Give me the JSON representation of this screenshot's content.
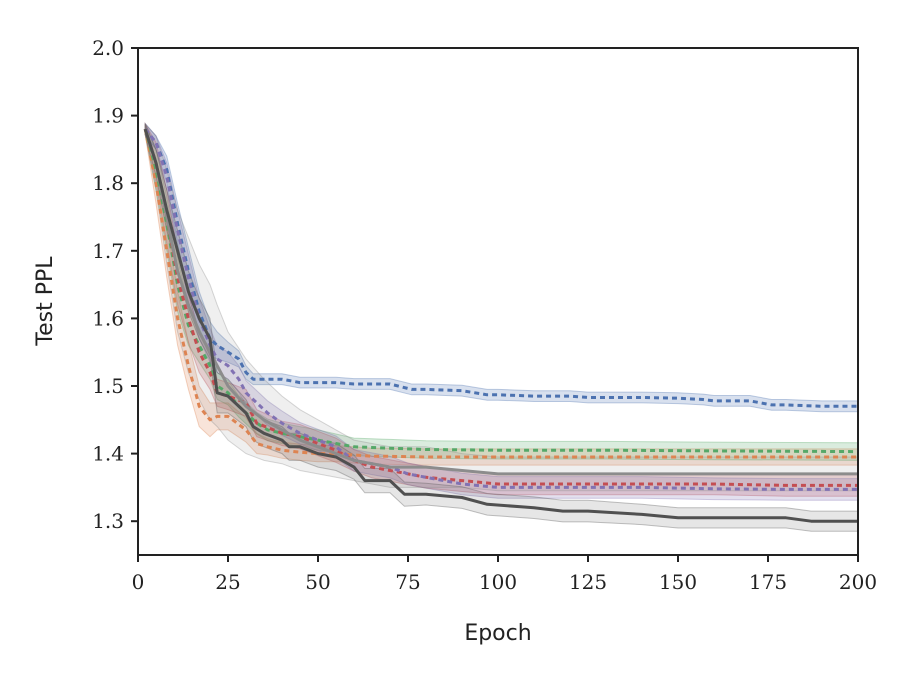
{
  "chart_data": {
    "type": "line",
    "title": "",
    "xlabel": "Epoch",
    "ylabel": "Test PPL",
    "xlim": [
      0,
      200
    ],
    "ylim": [
      1.25,
      2.0
    ],
    "xticks": [
      0,
      25,
      50,
      75,
      100,
      125,
      150,
      175,
      200
    ],
    "yticks": [
      1.3,
      1.4,
      1.5,
      1.6,
      1.7,
      1.8,
      1.9,
      2.0
    ],
    "xtick_labels": [
      "0",
      "25",
      "50",
      "75",
      "100",
      "125",
      "150",
      "175",
      "200"
    ],
    "ytick_labels": [
      "1.3",
      "1.4",
      "1.5",
      "1.6",
      "1.7",
      "1.8",
      "1.9",
      "2.0"
    ],
    "grid": false,
    "legend": "none",
    "series": [
      {
        "color": "#4c72b0",
        "style": "dashed",
        "x": [
          2,
          5,
          8,
          11,
          14,
          17,
          20,
          22,
          25,
          28,
          30,
          32,
          35,
          40,
          45,
          50,
          55,
          60,
          70,
          76,
          80,
          90,
          97,
          100,
          110,
          120,
          125,
          140,
          150,
          157,
          160,
          170,
          176,
          180,
          190,
          200
        ],
        "y": [
          1.88,
          1.86,
          1.82,
          1.74,
          1.67,
          1.61,
          1.57,
          1.56,
          1.55,
          1.54,
          1.52,
          1.51,
          1.51,
          1.51,
          1.505,
          1.505,
          1.505,
          1.503,
          1.503,
          1.495,
          1.495,
          1.493,
          1.487,
          1.487,
          1.485,
          1.485,
          1.483,
          1.483,
          1.482,
          1.48,
          1.478,
          1.478,
          1.472,
          1.472,
          1.47,
          1.47
        ],
        "band": [
          0.008,
          0.01,
          0.02,
          0.03,
          0.035,
          0.03,
          0.025,
          0.02,
          0.015,
          0.012,
          0.01,
          0.008,
          0.008,
          0.008,
          0.008,
          0.008,
          0.008,
          0.008,
          0.008,
          0.008,
          0.008,
          0.008,
          0.008,
          0.008,
          0.008,
          0.008,
          0.008,
          0.008,
          0.008,
          0.008,
          0.008,
          0.008,
          0.008,
          0.008,
          0.008,
          0.008
        ]
      },
      {
        "color": "#dd8452",
        "style": "dashed",
        "x": [
          2,
          5,
          8,
          11,
          14,
          17,
          20,
          22,
          25,
          30,
          33,
          36,
          40,
          45,
          50,
          55,
          60,
          65,
          70,
          80,
          90,
          100,
          120,
          140,
          160,
          180,
          200
        ],
        "y": [
          1.88,
          1.8,
          1.7,
          1.6,
          1.53,
          1.47,
          1.45,
          1.455,
          1.455,
          1.435,
          1.415,
          1.41,
          1.405,
          1.402,
          1.4,
          1.4,
          1.398,
          1.396,
          1.396,
          1.395,
          1.395,
          1.395,
          1.395,
          1.395,
          1.395,
          1.395,
          1.395
        ],
        "band": [
          0.008,
          0.03,
          0.04,
          0.04,
          0.035,
          0.03,
          0.025,
          0.02,
          0.02,
          0.018,
          0.015,
          0.012,
          0.012,
          0.012,
          0.012,
          0.012,
          0.012,
          0.012,
          0.012,
          0.012,
          0.012,
          0.012,
          0.012,
          0.012,
          0.012,
          0.012,
          0.012
        ]
      },
      {
        "color": "#55a868",
        "style": "dashed",
        "x": [
          2,
          5,
          8,
          11,
          14,
          17,
          20,
          22,
          25,
          28,
          30,
          33,
          36,
          40,
          45,
          50,
          55,
          60,
          70,
          80,
          100,
          130,
          160,
          200
        ],
        "y": [
          1.88,
          1.82,
          1.74,
          1.65,
          1.59,
          1.56,
          1.53,
          1.5,
          1.49,
          1.47,
          1.46,
          1.445,
          1.435,
          1.43,
          1.425,
          1.42,
          1.415,
          1.41,
          1.408,
          1.406,
          1.405,
          1.405,
          1.404,
          1.403
        ],
        "band": [
          0.008,
          0.03,
          0.04,
          0.04,
          0.03,
          0.025,
          0.02,
          0.02,
          0.018,
          0.016,
          0.016,
          0.016,
          0.016,
          0.015,
          0.015,
          0.015,
          0.014,
          0.013,
          0.013,
          0.013,
          0.013,
          0.013,
          0.013,
          0.013
        ]
      },
      {
        "color": "#c44e52",
        "style": "dashed",
        "x": [
          2,
          5,
          8,
          11,
          14,
          17,
          20,
          22,
          25,
          30,
          33,
          40,
          45,
          50,
          55,
          60,
          65,
          70,
          75,
          80,
          90,
          100,
          120,
          140,
          160,
          180,
          200
        ],
        "y": [
          1.88,
          1.83,
          1.75,
          1.66,
          1.6,
          1.55,
          1.52,
          1.49,
          1.485,
          1.475,
          1.445,
          1.43,
          1.425,
          1.415,
          1.405,
          1.39,
          1.38,
          1.375,
          1.37,
          1.365,
          1.36,
          1.355,
          1.355,
          1.355,
          1.355,
          1.353,
          1.353
        ],
        "band": [
          0.008,
          0.03,
          0.04,
          0.04,
          0.035,
          0.03,
          0.025,
          0.02,
          0.02,
          0.02,
          0.02,
          0.018,
          0.018,
          0.018,
          0.018,
          0.016,
          0.016,
          0.016,
          0.016,
          0.016,
          0.016,
          0.016,
          0.016,
          0.016,
          0.016,
          0.016,
          0.016
        ]
      },
      {
        "color": "#8172b3",
        "style": "dashed",
        "x": [
          2,
          5,
          8,
          11,
          14,
          17,
          20,
          22,
          25,
          28,
          30,
          33,
          36,
          40,
          45,
          50,
          55,
          60,
          65,
          70,
          75,
          80,
          90,
          100,
          120,
          140,
          160,
          180,
          200
        ],
        "y": [
          1.88,
          1.86,
          1.81,
          1.73,
          1.66,
          1.6,
          1.56,
          1.54,
          1.53,
          1.51,
          1.49,
          1.475,
          1.46,
          1.445,
          1.43,
          1.42,
          1.41,
          1.39,
          1.385,
          1.38,
          1.37,
          1.365,
          1.355,
          1.35,
          1.35,
          1.35,
          1.348,
          1.347,
          1.347
        ],
        "band": [
          0.008,
          0.01,
          0.02,
          0.03,
          0.035,
          0.03,
          0.025,
          0.02,
          0.02,
          0.02,
          0.018,
          0.018,
          0.018,
          0.018,
          0.016,
          0.016,
          0.016,
          0.016,
          0.016,
          0.016,
          0.016,
          0.016,
          0.016,
          0.016,
          0.016,
          0.016,
          0.016,
          0.016,
          0.016
        ]
      },
      {
        "color": "#8c8c8c",
        "style": "solid",
        "x": [
          2,
          5,
          8,
          11,
          14,
          17,
          20,
          22,
          25,
          30,
          35,
          40,
          45,
          50,
          55,
          60,
          65,
          70,
          75,
          80,
          90,
          100,
          120,
          140,
          160,
          180,
          200
        ],
        "y": [
          1.88,
          1.83,
          1.75,
          1.67,
          1.62,
          1.58,
          1.55,
          1.53,
          1.5,
          1.47,
          1.45,
          1.435,
          1.42,
          1.41,
          1.4,
          1.39,
          1.385,
          1.38,
          1.38,
          1.38,
          1.375,
          1.37,
          1.37,
          1.37,
          1.37,
          1.37,
          1.37
        ],
        "band": [
          0.008,
          0.04,
          0.07,
          0.09,
          0.1,
          0.1,
          0.1,
          0.09,
          0.08,
          0.07,
          0.06,
          0.05,
          0.045,
          0.04,
          0.035,
          0.03,
          0.03,
          0.03,
          0.03,
          0.03,
          0.025,
          0.025,
          0.025,
          0.025,
          0.025,
          0.025,
          0.025
        ]
      },
      {
        "color": "#505050",
        "style": "solid",
        "x": [
          2,
          5,
          8,
          11,
          14,
          17,
          20,
          22,
          25,
          30,
          32,
          35,
          40,
          42,
          45,
          50,
          55,
          60,
          63,
          70,
          74,
          80,
          90,
          97,
          110,
          118,
          125,
          140,
          150,
          160,
          170,
          180,
          187,
          200
        ],
        "y": [
          1.88,
          1.83,
          1.76,
          1.7,
          1.64,
          1.6,
          1.57,
          1.49,
          1.485,
          1.46,
          1.44,
          1.43,
          1.42,
          1.41,
          1.41,
          1.4,
          1.395,
          1.38,
          1.36,
          1.36,
          1.34,
          1.34,
          1.335,
          1.325,
          1.32,
          1.315,
          1.315,
          1.31,
          1.305,
          1.305,
          1.305,
          1.305,
          1.3,
          1.3
        ],
        "band": [
          0.008,
          0.02,
          0.03,
          0.03,
          0.03,
          0.03,
          0.03,
          0.03,
          0.025,
          0.02,
          0.02,
          0.02,
          0.02,
          0.02,
          0.02,
          0.02,
          0.02,
          0.018,
          0.018,
          0.018,
          0.018,
          0.016,
          0.016,
          0.016,
          0.016,
          0.016,
          0.016,
          0.015,
          0.015,
          0.015,
          0.015,
          0.015,
          0.015,
          0.015
        ]
      }
    ]
  }
}
